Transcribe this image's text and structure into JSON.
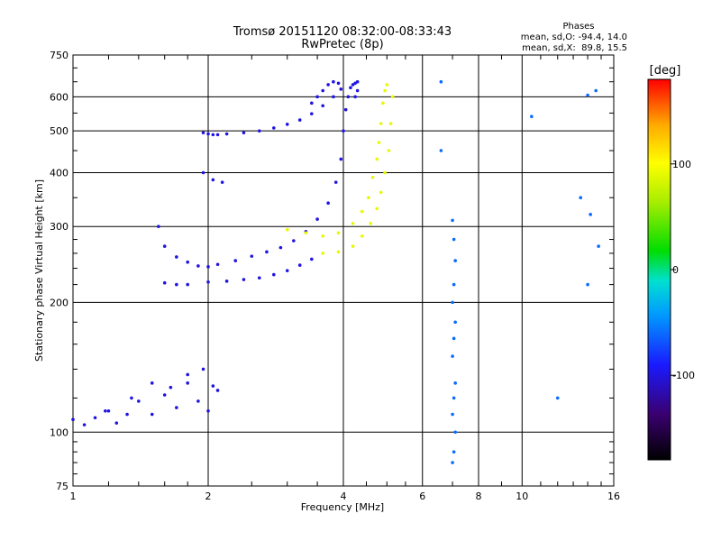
{
  "chart_data": {
    "type": "scatter",
    "title": "Tromsø 20151120 08:32:00-08:33:43",
    "subtitle": "RwPretec (8p)",
    "xlabel": "Frequency [MHz]",
    "ylabel": "Stationary phase Virtual Height [km]",
    "x_scale": "log",
    "y_scale": "log",
    "xlim": [
      1,
      16
    ],
    "ylim": [
      75,
      750
    ],
    "grid": true,
    "x_ticks": [
      1,
      2,
      4,
      6,
      8,
      10,
      16
    ],
    "x_tick_labels": [
      "1",
      "2",
      "4",
      "6",
      "8",
      "10",
      "16"
    ],
    "y_ticks": [
      75,
      100,
      200,
      300,
      400,
      500,
      600,
      750
    ],
    "y_tick_labels": [
      "75",
      "100",
      "200",
      "300",
      "400",
      "500",
      "600",
      "750"
    ],
    "stats": {
      "heading": "Phases",
      "line_o": "mean, sd,O: -94.4, 14.0",
      "line_x": "mean, sd,X:  89.8, 15.5"
    },
    "colorbar": {
      "label": "[deg]",
      "min": -180,
      "max": 180,
      "ticks": [
        100,
        0,
        -100
      ],
      "tick_labels": [
        "100",
        "0",
        "-100"
      ]
    },
    "series": [
      {
        "mode": "O",
        "phase_color_deg": -100,
        "x": [
          1.0,
          1.06,
          1.12,
          1.18,
          1.25,
          1.32,
          1.4,
          1.5,
          1.6,
          1.7,
          1.8,
          1.9,
          2.0,
          2.1,
          1.2,
          1.35,
          1.5,
          1.65,
          1.8,
          1.95,
          2.05,
          1.55,
          1.6,
          1.7,
          1.8,
          1.9,
          2.0,
          2.1,
          2.3,
          2.5,
          2.7,
          2.9,
          3.1,
          3.3,
          3.5,
          3.7,
          3.85,
          3.95,
          4.0,
          4.05,
          4.1,
          4.15,
          4.2,
          4.25,
          4.3,
          4.3,
          4.25,
          1.6,
          1.7,
          1.8,
          2.0,
          2.2,
          2.4,
          2.6,
          2.8,
          3.0,
          3.2,
          3.4,
          1.95,
          2.0,
          2.05,
          2.1,
          2.2,
          2.4,
          2.6,
          2.8,
          3.0,
          3.2,
          3.4,
          3.6,
          3.8,
          3.95,
          1.95,
          2.05,
          2.15,
          3.4,
          3.5,
          3.6,
          3.7,
          3.8,
          3.9
        ],
        "y": [
          107,
          104,
          108,
          112,
          105,
          110,
          118,
          110,
          122,
          114,
          130,
          118,
          112,
          125,
          112,
          120,
          130,
          127,
          136,
          140,
          128,
          300,
          270,
          255,
          248,
          243,
          242,
          245,
          250,
          256,
          262,
          268,
          278,
          292,
          312,
          340,
          380,
          430,
          500,
          560,
          600,
          630,
          640,
          645,
          650,
          620,
          600,
          222,
          220,
          220,
          223,
          224,
          226,
          228,
          232,
          237,
          244,
          252,
          495,
          492,
          490,
          490,
          492,
          495,
          500,
          508,
          518,
          530,
          548,
          572,
          600,
          625,
          400,
          385,
          380,
          580,
          600,
          620,
          640,
          650,
          645
        ]
      },
      {
        "mode": "X",
        "phase_color_deg": 90,
        "x": [
          3.0,
          3.3,
          3.6,
          3.9,
          4.2,
          4.4,
          4.55,
          4.65,
          4.75,
          4.8,
          4.85,
          4.9,
          4.95,
          5.0,
          3.6,
          3.9,
          4.2,
          4.4,
          4.6,
          4.75,
          4.85,
          4.95,
          5.05,
          5.1,
          5.15
        ],
        "y": [
          295,
          290,
          285,
          290,
          305,
          325,
          350,
          390,
          430,
          470,
          520,
          580,
          620,
          640,
          260,
          262,
          270,
          285,
          305,
          330,
          360,
          400,
          450,
          520,
          600
        ]
      },
      {
        "mode": "scattered",
        "phase_color_deg": -60,
        "x": [
          7.0,
          7.05,
          7.1,
          7.0,
          7.05,
          7.1,
          7.0,
          7.05,
          7.1,
          7.0,
          7.05,
          7.1,
          7.05,
          7.0,
          6.6,
          14.0,
          14.6,
          13.5,
          14.2,
          14.8,
          14.0,
          12.0,
          6.6,
          10.5
        ],
        "y": [
          85,
          90,
          100,
          110,
          120,
          130,
          150,
          165,
          180,
          200,
          220,
          250,
          280,
          310,
          650,
          605,
          620,
          350,
          320,
          270,
          220,
          120,
          450,
          540
        ]
      }
    ]
  }
}
